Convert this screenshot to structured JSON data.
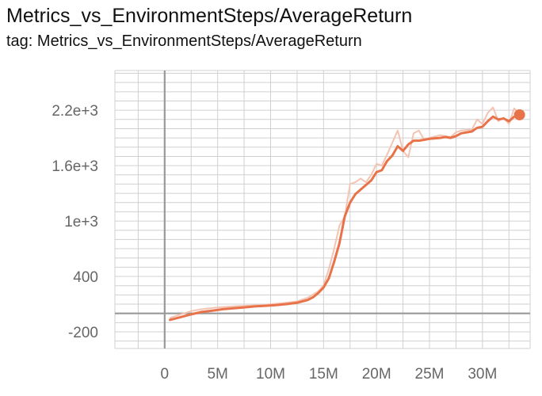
{
  "chart": {
    "title": "Metrics_vs_EnvironmentSteps/AverageReturn",
    "subtitle": "tag: Metrics_vs_EnvironmentSteps/AverageReturn"
  },
  "colors": {
    "smoothed": "#e8734a",
    "raw": "#f4c4b3",
    "grid": "#d0d0d0",
    "axis": "#999999",
    "tick_text": "#666666"
  },
  "chart_data": {
    "type": "line",
    "title": "Metrics_vs_EnvironmentSteps/AverageReturn",
    "subtitle": "tag: Metrics_vs_EnvironmentSteps/AverageReturn",
    "xlabel": "",
    "ylabel": "",
    "xlim": [
      -4700000,
      34500000
    ],
    "ylim": [
      -380,
      2630
    ],
    "x_ticks": [
      {
        "value": 0,
        "label": "0"
      },
      {
        "value": 5000000,
        "label": "5M"
      },
      {
        "value": 10000000,
        "label": "10M"
      },
      {
        "value": 15000000,
        "label": "15M"
      },
      {
        "value": 20000000,
        "label": "20M"
      },
      {
        "value": 25000000,
        "label": "25M"
      },
      {
        "value": 30000000,
        "label": "30M"
      }
    ],
    "y_ticks": [
      {
        "value": -200,
        "label": "-200"
      },
      {
        "value": 400,
        "label": "400"
      },
      {
        "value": 1000,
        "label": "1e+3"
      },
      {
        "value": 1600,
        "label": "1.6e+3"
      },
      {
        "value": 2200,
        "label": "2.2e+3"
      }
    ],
    "grid": true,
    "legend": "none",
    "series": [
      {
        "style": "raw",
        "x": [
          500000,
          1500000,
          2500000,
          3500000,
          5000000,
          7000000,
          9000000,
          11000000,
          12500000,
          13500000,
          14500000,
          15000000,
          15500000,
          16000000,
          16500000,
          17000000,
          17500000,
          18000000,
          18500000,
          19000000,
          19500000,
          20000000,
          20500000,
          21000000,
          21500000,
          22000000,
          22500000,
          23000000,
          23500000,
          24000000,
          24500000,
          25000000,
          26000000,
          27000000,
          27500000,
          28000000,
          29000000,
          29500000,
          30000000,
          30500000,
          31000000,
          31500000,
          32000000,
          32500000,
          33000000,
          33500000
        ],
        "y": [
          -50,
          -10,
          25,
          45,
          65,
          80,
          90,
          110,
          130,
          170,
          240,
          300,
          480,
          700,
          950,
          1050,
          1400,
          1420,
          1460,
          1420,
          1500,
          1620,
          1600,
          1720,
          1850,
          1980,
          1760,
          1690,
          1950,
          1980,
          1880,
          1900,
          1930,
          1910,
          1960,
          1980,
          1990,
          2100,
          2050,
          2170,
          2230,
          2080,
          2120,
          2050,
          2220,
          2160
        ]
      },
      {
        "style": "smoothed",
        "x": [
          500000,
          1500000,
          2500000,
          3500000,
          4500000,
          5500000,
          6500000,
          7500000,
          8500000,
          9500000,
          10500000,
          11500000,
          12500000,
          13500000,
          14000000,
          14500000,
          15000000,
          15500000,
          16000000,
          16500000,
          17000000,
          17500000,
          18000000,
          18500000,
          19000000,
          19500000,
          20000000,
          20500000,
          21000000,
          21500000,
          22000000,
          22500000,
          23000000,
          23500000,
          24000000,
          24500000,
          25000000,
          26000000,
          26500000,
          27000000,
          27500000,
          28000000,
          29000000,
          29500000,
          30000000,
          30500000,
          31000000,
          31500000,
          32000000,
          32500000,
          33000000,
          33500000
        ],
        "y": [
          -70,
          -40,
          -10,
          15,
          30,
          45,
          55,
          65,
          75,
          82,
          90,
          100,
          115,
          145,
          175,
          220,
          280,
          380,
          560,
          760,
          1050,
          1200,
          1290,
          1340,
          1390,
          1440,
          1530,
          1550,
          1650,
          1710,
          1810,
          1760,
          1830,
          1870,
          1870,
          1880,
          1890,
          1900,
          1910,
          1900,
          1920,
          1950,
          1970,
          2010,
          2020,
          2080,
          2130,
          2100,
          2110,
          2080,
          2130,
          2140
        ]
      }
    ],
    "end_marker": {
      "x": 33500000,
      "y": 2150
    }
  }
}
